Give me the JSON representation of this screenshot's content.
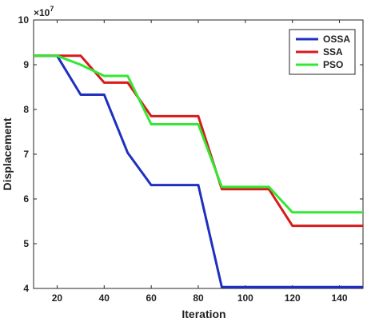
{
  "chart_data": {
    "type": "line",
    "xlabel": "Iteration",
    "ylabel": "Displacement",
    "exponent_label": "×10",
    "exponent_power": "7",
    "xlim": [
      10,
      150
    ],
    "ylim": [
      4,
      10
    ],
    "xticks": [
      20,
      40,
      60,
      80,
      100,
      120,
      140
    ],
    "yticks": [
      4,
      5,
      6,
      7,
      8,
      9,
      10
    ],
    "grid": false,
    "legend_position": "top-right",
    "series": [
      {
        "name": "OSSA",
        "color": "#1f2fbf",
        "x": [
          10,
          20,
          30,
          40,
          50,
          60,
          70,
          80,
          90,
          100,
          110,
          120,
          130,
          140,
          150
        ],
        "y": [
          9.2,
          9.2,
          8.33,
          8.33,
          7.03,
          6.31,
          6.31,
          6.31,
          4.03,
          4.03,
          4.03,
          4.03,
          4.03,
          4.03,
          4.03
        ]
      },
      {
        "name": "SSA",
        "color": "#d81b1b",
        "x": [
          10,
          20,
          30,
          40,
          50,
          60,
          70,
          80,
          90,
          100,
          110,
          120,
          130,
          140,
          150
        ],
        "y": [
          9.2,
          9.2,
          9.2,
          8.6,
          8.6,
          7.85,
          7.85,
          7.85,
          6.22,
          6.22,
          6.22,
          5.4,
          5.4,
          5.4,
          5.4
        ]
      },
      {
        "name": "PSO",
        "color": "#33e833",
        "x": [
          10,
          20,
          30,
          40,
          50,
          60,
          70,
          80,
          90,
          100,
          110,
          120,
          130,
          140,
          150
        ],
        "y": [
          9.2,
          9.2,
          9.0,
          8.75,
          8.75,
          7.67,
          7.67,
          7.67,
          6.27,
          6.27,
          6.27,
          5.7,
          5.7,
          5.7,
          5.7
        ]
      }
    ]
  }
}
